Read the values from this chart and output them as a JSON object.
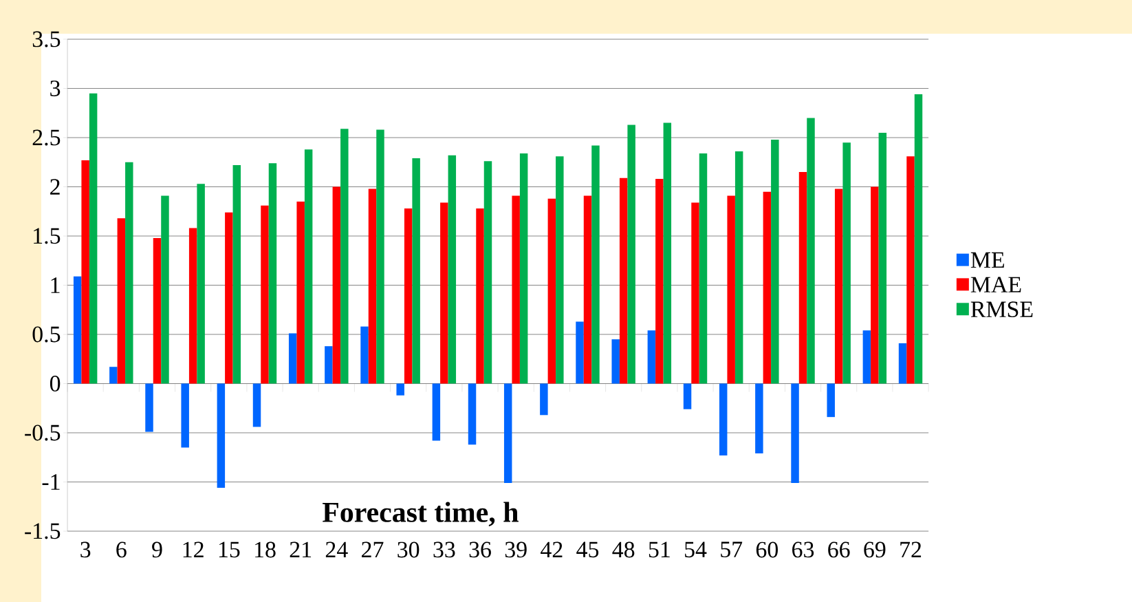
{
  "chart_data": {
    "type": "bar",
    "xlabel": "Forecast time, h",
    "categories": [
      "3",
      "6",
      "9",
      "12",
      "15",
      "18",
      "21",
      "24",
      "27",
      "30",
      "33",
      "36",
      "39",
      "42",
      "45",
      "48",
      "51",
      "54",
      "57",
      "60",
      "63",
      "66",
      "69",
      "72"
    ],
    "series": [
      {
        "name": "ME",
        "color": "#0066ff",
        "values": [
          1.09,
          0.17,
          -0.49,
          -0.65,
          -1.06,
          -0.44,
          0.51,
          0.38,
          0.58,
          -0.12,
          -0.58,
          -0.62,
          -1.01,
          -0.32,
          0.63,
          0.45,
          0.54,
          -0.26,
          -0.73,
          -0.71,
          -1.01,
          -0.34,
          0.54,
          0.41
        ]
      },
      {
        "name": "MAE",
        "color": "#ff0000",
        "values": [
          2.27,
          1.68,
          1.48,
          1.58,
          1.74,
          1.81,
          1.85,
          2.0,
          1.98,
          1.78,
          1.84,
          1.78,
          1.91,
          1.88,
          1.91,
          2.09,
          2.08,
          1.84,
          1.91,
          1.95,
          2.15,
          1.98,
          2.0,
          2.31
        ]
      },
      {
        "name": "RMSE",
        "color": "#00b050",
        "values": [
          2.95,
          2.25,
          1.91,
          2.03,
          2.22,
          2.24,
          2.38,
          2.59,
          2.58,
          2.29,
          2.32,
          2.26,
          2.34,
          2.31,
          2.42,
          2.63,
          2.65,
          2.34,
          2.36,
          2.48,
          2.7,
          2.45,
          2.55,
          2.94
        ]
      }
    ],
    "ylim": [
      -1.5,
      3.5
    ],
    "yticks": [
      -1.5,
      -1,
      -0.5,
      0,
      0.5,
      1,
      1.5,
      2,
      2.5,
      3,
      3.5
    ],
    "grid": "y",
    "legend": "right"
  }
}
